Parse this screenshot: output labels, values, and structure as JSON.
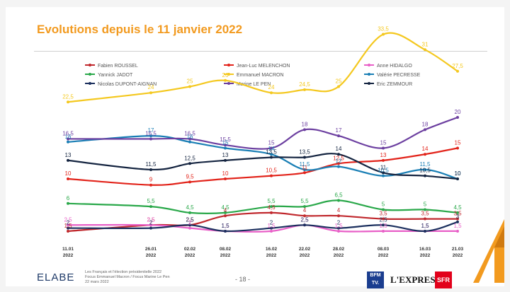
{
  "header": {
    "title": "Evolutions depuis le 11 janvier 2022"
  },
  "footer": {
    "brand": "ELABE",
    "info_lines": [
      "Les Français et l'élection présidentielle 2022",
      "Focus Emmanuel Macron / Focus Marine Le Pen",
      "22 mars 2022"
    ],
    "page": "- 18 -",
    "partners": [
      "BFM TV.",
      "L'EXPRESS",
      "SFR"
    ]
  },
  "colors": {
    "accent": "#f29a1f",
    "roussel": "#c0282d",
    "melenchon": "#e2231a",
    "hidalgo": "#e85fc7",
    "jadot": "#2aa84a",
    "macron": "#f4c81f",
    "pecresse": "#1a7fb5",
    "dupont_aignan": "#1b2f5e",
    "le_pen": "#6c3fa0",
    "zemmour": "#142440"
  },
  "chart_data": {
    "type": "line",
    "title": "Evolutions depuis le 11 janvier 2022",
    "xlabel": "",
    "ylabel": "",
    "grid": false,
    "legend_placement": "top",
    "dates": [
      "11.01 2022",
      "26.01 2022",
      "02.02 2022",
      "08.02 2022",
      "16.02 2022",
      "22.02 2022",
      "28.02 2022",
      "08.03 2022",
      "16.03 2022",
      "21.03 2022"
    ],
    "series": [
      {
        "key": "roussel",
        "name": "Fabien ROUSSEL",
        "values": [
          1.5,
          2.5,
          2.5,
          4,
          4.5,
          4,
          4,
          3.5,
          3.5,
          3.5
        ],
        "labels": [
          "1,5",
          "2,5",
          "2,5",
          "4",
          "4,5",
          "4",
          "4",
          "3,5",
          "3,5",
          "3,5"
        ]
      },
      {
        "key": "melenchon",
        "name": "Jean-Luc MELENCHON",
        "values": [
          10,
          9,
          9.5,
          10,
          10.5,
          11,
          12.5,
          13,
          14,
          15
        ],
        "labels": [
          "10",
          "9",
          "9,5",
          "10",
          "10,5",
          "11",
          "12,5",
          "13",
          "14",
          "15"
        ]
      },
      {
        "key": "hidalgo",
        "name": "Anne HIDALGO",
        "values": [
          2.5,
          2.5,
          2,
          1.5,
          1.5,
          2.5,
          1.5,
          1.5,
          1.5,
          1.5
        ],
        "labels": [
          "2,5",
          "2,5",
          "2",
          "1,5",
          "1,5",
          "2,5",
          "1,5",
          "1,5",
          "1,5",
          "1,5"
        ]
      },
      {
        "key": "jadot",
        "name": "Yannick JADOT",
        "values": [
          6,
          5.5,
          4.5,
          4.5,
          5.5,
          5.5,
          6.5,
          5,
          5,
          4.5
        ],
        "labels": [
          "6",
          "5,5",
          "4,5",
          "4,5",
          "5,5",
          "5,5",
          "6,5",
          "5",
          "5",
          "4,5"
        ]
      },
      {
        "key": "macron",
        "name": "Emmanuel MACRON",
        "values": [
          22.5,
          24,
          25,
          26,
          24,
          24.5,
          25,
          33.5,
          31,
          27.5
        ],
        "labels": [
          "22,5",
          "24",
          "25",
          "26",
          "24",
          "24,5",
          "25",
          "33,5",
          "31",
          "27,5"
        ]
      },
      {
        "key": "pecresse",
        "name": "Valérie PECRESSE",
        "values": [
          16,
          17,
          16,
          15,
          14,
          11.5,
          12,
          10.5,
          11.5,
          10
        ],
        "labels": [
          "16",
          "17",
          "16",
          "15",
          "14",
          "11,5",
          "12",
          "10,5",
          "11,5",
          "10"
        ]
      },
      {
        "key": "dupont_aignan",
        "name": "Nicolas DUPONT-AIGNAN",
        "values": [
          2,
          2,
          2.5,
          1.5,
          2,
          2.5,
          2,
          2.5,
          1.5,
          3
        ],
        "labels": [
          "2",
          "2",
          "2,5",
          "1,5",
          "2",
          "2,5",
          "2",
          "2,5",
          "1,5",
          "3"
        ]
      },
      {
        "key": "le_pen",
        "name": "Marine LE PEN",
        "values": [
          16.5,
          16.5,
          16.5,
          15.5,
          15,
          18,
          17,
          15,
          18,
          20
        ],
        "labels": [
          "16,5",
          "16,5",
          "16,5",
          "15,5",
          "15",
          "18",
          "17",
          "15",
          "18",
          "20"
        ]
      },
      {
        "key": "zemmour",
        "name": "Eric ZEMMOUR",
        "values": [
          13,
          11.5,
          12.5,
          13,
          13.5,
          13.5,
          14,
          11,
          10.5,
          10
        ],
        "labels": [
          "13",
          "11,5",
          "12,5",
          "13",
          "13,5",
          "13,5",
          "14",
          "11",
          "10,5",
          "10"
        ]
      }
    ]
  }
}
